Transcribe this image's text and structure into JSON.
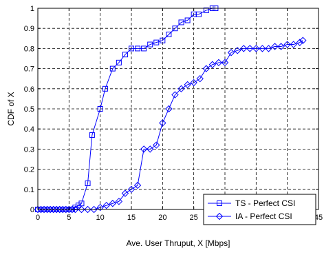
{
  "chart_data": {
    "type": "line",
    "xlabel": "Ave. User Thruput, X [Mbps]",
    "ylabel": "CDF of X",
    "xlim": [
      0,
      45
    ],
    "ylim": [
      0,
      1
    ],
    "xticks": [
      "0",
      "5",
      "10",
      "15",
      "20",
      "25",
      "30",
      "35",
      "40",
      "45"
    ],
    "yticks": [
      "0",
      "0.1",
      "0.2",
      "0.3",
      "0.4",
      "0.5",
      "0.6",
      "0.7",
      "0.8",
      "0.9",
      "1"
    ],
    "grid": true,
    "legend_position": "bottom-right",
    "series": [
      {
        "name": "TS - Perfect CSI",
        "marker": "square",
        "color": "#0000ff",
        "x": [
          0.0,
          0.5,
          1.0,
          1.5,
          2.0,
          2.5,
          3.0,
          3.5,
          4.0,
          4.5,
          5.0,
          5.5,
          6.0,
          6.5,
          7.0,
          8.0,
          8.7,
          10.0,
          10.8,
          12.0,
          13.0,
          14.0,
          15.0,
          16.0,
          17.0,
          18.0,
          19.0,
          20.0,
          21.0,
          22.0,
          23.0,
          24.0,
          25.0,
          25.8,
          27.0,
          28.0,
          28.5
        ],
        "y": [
          0.0,
          0.0,
          0.0,
          0.0,
          0.0,
          0.0,
          0.0,
          0.0,
          0.0,
          0.0,
          0.0,
          0.0,
          0.01,
          0.02,
          0.03,
          0.13,
          0.37,
          0.5,
          0.6,
          0.7,
          0.73,
          0.77,
          0.8,
          0.8,
          0.8,
          0.82,
          0.83,
          0.84,
          0.87,
          0.9,
          0.93,
          0.94,
          0.97,
          0.97,
          0.99,
          1.0,
          1.0
        ]
      },
      {
        "name": "IA - Perfect CSI",
        "marker": "diamond",
        "color": "#0000ff",
        "x": [
          0.0,
          0.5,
          1.0,
          1.5,
          2.0,
          2.5,
          3.0,
          3.5,
          4.0,
          4.5,
          5.0,
          5.5,
          6.0,
          7.0,
          8.0,
          9.0,
          10.0,
          11.0,
          12.0,
          13.0,
          14.0,
          15.0,
          16.0,
          17.0,
          18.0,
          19.0,
          20.0,
          21.0,
          22.0,
          23.0,
          24.0,
          25.0,
          26.0,
          27.0,
          28.0,
          29.0,
          30.0,
          31.0,
          32.0,
          33.0,
          34.0,
          35.0,
          36.0,
          37.0,
          38.0,
          39.0,
          40.0,
          41.0,
          42.0,
          42.5
        ],
        "y": [
          0.0,
          0.0,
          0.0,
          0.0,
          0.0,
          0.0,
          0.0,
          0.0,
          0.0,
          0.0,
          0.0,
          0.0,
          0.0,
          0.0,
          0.0,
          0.0,
          0.01,
          0.02,
          0.03,
          0.04,
          0.08,
          0.1,
          0.12,
          0.3,
          0.3,
          0.32,
          0.43,
          0.5,
          0.57,
          0.6,
          0.62,
          0.63,
          0.65,
          0.7,
          0.72,
          0.73,
          0.73,
          0.78,
          0.79,
          0.8,
          0.8,
          0.8,
          0.8,
          0.8,
          0.81,
          0.81,
          0.82,
          0.82,
          0.83,
          0.84
        ]
      }
    ]
  }
}
